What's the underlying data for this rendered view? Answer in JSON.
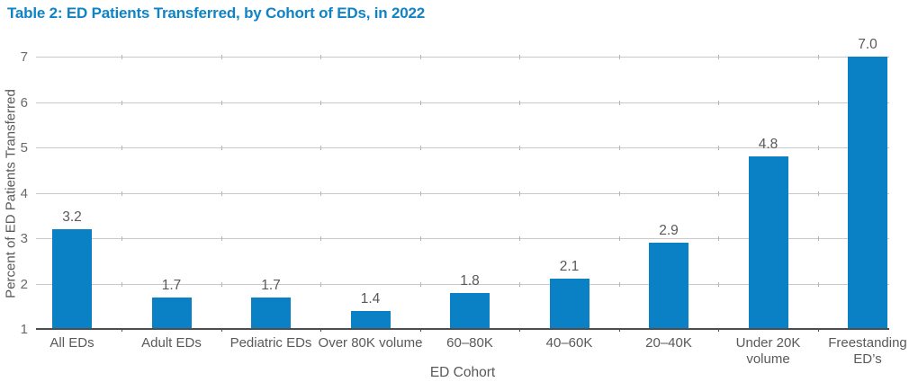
{
  "title": "Table 2: ED Patients Transferred, by Cohort of EDs, in 2022",
  "chart_data": {
    "type": "bar",
    "title": "Table 2: ED Patients Transferred, by Cohort of EDs, in 2022",
    "categories": [
      "All EDs",
      "Adult EDs",
      "Pediatric EDs",
      "Over 80K volume",
      "60–80K",
      "40–60K",
      "20–40K",
      "Under 20K volume",
      "Freestanding ED’s"
    ],
    "values": [
      3.2,
      1.7,
      1.7,
      1.4,
      1.8,
      2.1,
      2.9,
      4.8,
      7.0
    ],
    "value_labels": [
      "3.2",
      "1.7",
      "1.7",
      "1.4",
      "1.8",
      "2.1",
      "2.9",
      "4.8",
      "7.0"
    ],
    "xlabel": "ED Cohort",
    "ylabel": "Percent of ED Patients Transferred",
    "ylim": [
      1,
      7
    ],
    "yticks": [
      1,
      2,
      3,
      4,
      5,
      6,
      7
    ],
    "grid": "horizontal-only",
    "legend": "none",
    "colors": {
      "bar": "#0a81c4",
      "title": "#0f83c6",
      "axis": "#4d4d4d",
      "gridline": "#c9c9c9",
      "boundary_tick": "#b5b5b5",
      "tick_text": "#6a6a6a",
      "label_text": "#595959"
    }
  }
}
